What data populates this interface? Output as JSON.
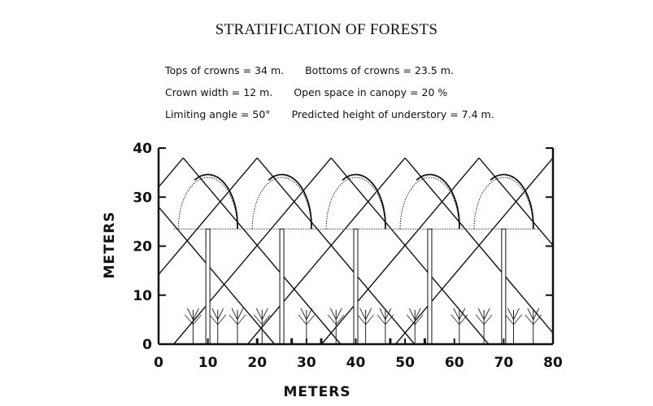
{
  "title": "STRATIFICATION OF FORESTS",
  "params": {
    "tops": "Tops of crowns = 34 m.",
    "bottoms": "Bottoms of crowns = 23.5 m.",
    "width": "Crown width = 12 m.",
    "open": "Open space in canopy = 20 %",
    "angle": "Limiting angle = 50°",
    "predicted": "Predicted height of understory = 7.4 m."
  },
  "x_axis": {
    "label": "METERS",
    "ticks": [
      "0",
      "10",
      "20",
      "30",
      "40",
      "50",
      "60",
      "70",
      "80"
    ]
  },
  "y_axis": {
    "label": "METERS",
    "ticks": [
      "0",
      "10",
      "20",
      "30",
      "40"
    ]
  },
  "diagram_values": {
    "x_range": [
      0,
      80
    ],
    "y_range": [
      0,
      40
    ],
    "crown_top_m": 34,
    "crown_bottom_m": 23.5,
    "crown_width_m": 12,
    "tree_positions_m": [
      10,
      25,
      40,
      55,
      70
    ],
    "line_slope": 1.19,
    "line_top_y_m": 38,
    "understory_trees_x_m": [
      7,
      12,
      16,
      21,
      30,
      36,
      42,
      46,
      52,
      61,
      66,
      72,
      76
    ]
  }
}
